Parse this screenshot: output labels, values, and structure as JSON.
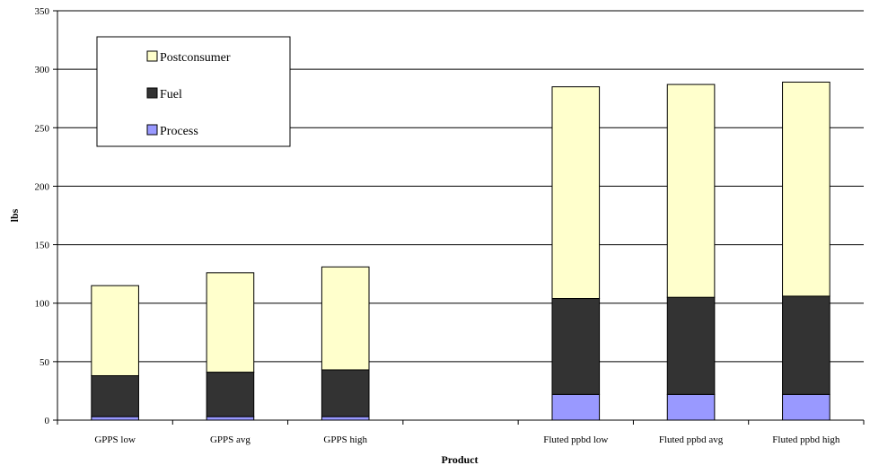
{
  "chart_data": {
    "type": "bar",
    "stacked": true,
    "title": "",
    "xlabel": "Product",
    "ylabel": "lbs",
    "ylim": [
      0,
      350
    ],
    "yticks": [
      0,
      50,
      100,
      150,
      200,
      250,
      300,
      350
    ],
    "grid": true,
    "legend_placement": "top-left",
    "categories": [
      "GPPS low",
      "GPPS avg",
      "GPPS high",
      "",
      "Fluted ppbd low",
      "Fluted ppbd avg",
      "Fluted ppbd high"
    ],
    "series": [
      {
        "name": "Process",
        "color": "#9999ff",
        "values": [
          3,
          3,
          3,
          null,
          22,
          22,
          22
        ]
      },
      {
        "name": "Fuel",
        "color": "#333333",
        "values": [
          35,
          38,
          40,
          null,
          82,
          83,
          84
        ]
      },
      {
        "name": "Postconsumer",
        "color": "#ffffcc",
        "values": [
          77,
          85,
          88,
          null,
          181,
          182,
          183
        ]
      }
    ]
  }
}
